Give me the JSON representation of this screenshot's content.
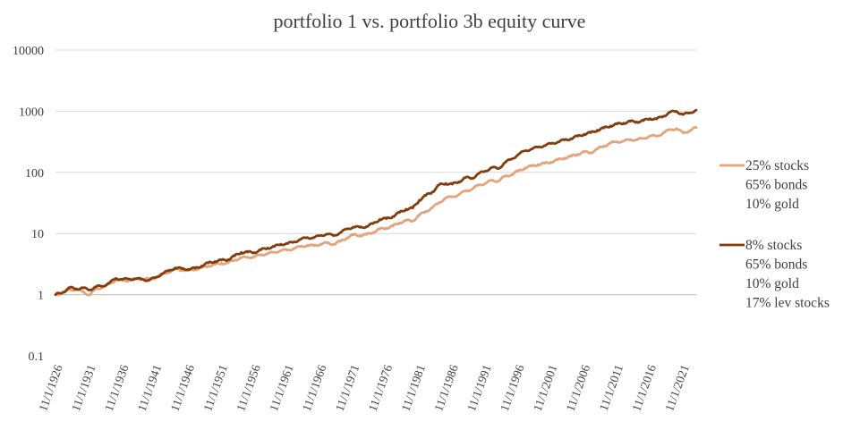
{
  "chart_data": {
    "type": "line",
    "title": "portfolio 1 vs. portfolio 3b equity curve",
    "xlabel": "",
    "ylabel": "",
    "y_scale": "log",
    "ylim": [
      0.1,
      10000
    ],
    "yticks": [
      "0.1",
      "1",
      "10",
      "100",
      "1000",
      "10000"
    ],
    "x_tick_labels": [
      "11/1/1926",
      "11/1/1931",
      "11/1/1936",
      "11/1/1941",
      "11/1/1946",
      "11/1/1951",
      "11/1/1956",
      "11/1/1961",
      "11/1/1966",
      "11/1/1971",
      "11/1/1976",
      "11/1/1981",
      "11/1/1986",
      "11/1/1991",
      "11/1/1996",
      "11/1/2001",
      "11/1/2006",
      "11/1/2011",
      "11/1/2016",
      "11/1/2021"
    ],
    "x_range": [
      1926.83,
      2024.0
    ],
    "grid": "horizontal",
    "legend": "right",
    "series": [
      {
        "legend_lines": [
          "25% stocks",
          "65% bonds",
          "10% gold"
        ],
        "color": "#e3a47c",
        "points": [
          [
            1926.83,
            1.0
          ],
          [
            1928,
            1.08
          ],
          [
            1929,
            1.22
          ],
          [
            1930,
            1.2
          ],
          [
            1931,
            1.12
          ],
          [
            1932,
            0.98
          ],
          [
            1933,
            1.25
          ],
          [
            1934,
            1.32
          ],
          [
            1935,
            1.5
          ],
          [
            1936,
            1.75
          ],
          [
            1937,
            1.7
          ],
          [
            1938,
            1.72
          ],
          [
            1939,
            1.8
          ],
          [
            1940,
            1.82
          ],
          [
            1941,
            1.78
          ],
          [
            1942,
            1.9
          ],
          [
            1943,
            2.15
          ],
          [
            1944,
            2.35
          ],
          [
            1945,
            2.6
          ],
          [
            1946,
            2.55
          ],
          [
            1947,
            2.5
          ],
          [
            1948,
            2.6
          ],
          [
            1949,
            2.75
          ],
          [
            1950,
            2.95
          ],
          [
            1951,
            3.1
          ],
          [
            1952,
            3.25
          ],
          [
            1953,
            3.3
          ],
          [
            1954,
            3.7
          ],
          [
            1955,
            4.0
          ],
          [
            1956,
            4.1
          ],
          [
            1957,
            4.15
          ],
          [
            1958,
            4.5
          ],
          [
            1959,
            4.7
          ],
          [
            1960,
            4.9
          ],
          [
            1961,
            5.3
          ],
          [
            1962,
            5.35
          ],
          [
            1963,
            5.7
          ],
          [
            1964,
            6.1
          ],
          [
            1965,
            6.4
          ],
          [
            1966,
            6.3
          ],
          [
            1967,
            6.7
          ],
          [
            1968,
            7.0
          ],
          [
            1969,
            6.7
          ],
          [
            1970,
            7.4
          ],
          [
            1971,
            8.5
          ],
          [
            1972,
            9.5
          ],
          [
            1973,
            9.3
          ],
          [
            1974,
            9.6
          ],
          [
            1975,
            10.5
          ],
          [
            1976,
            11.8
          ],
          [
            1977,
            12.3
          ],
          [
            1978,
            13.2
          ],
          [
            1979,
            15.0
          ],
          [
            1980,
            16.3
          ],
          [
            1981,
            16.0
          ],
          [
            1982,
            20.0
          ],
          [
            1983,
            23.0
          ],
          [
            1984,
            26.5
          ],
          [
            1985,
            32.0
          ],
          [
            1986,
            38.0
          ],
          [
            1987,
            40.0
          ],
          [
            1988,
            43.0
          ],
          [
            1989,
            50.0
          ],
          [
            1990,
            53.0
          ],
          [
            1991,
            62.0
          ],
          [
            1992,
            66.0
          ],
          [
            1993,
            74.0
          ],
          [
            1994,
            72.0
          ],
          [
            1995,
            86.0
          ],
          [
            1996,
            92.0
          ],
          [
            1997,
            105.0
          ],
          [
            1998,
            118.0
          ],
          [
            1999,
            126.0
          ],
          [
            2000,
            134.0
          ],
          [
            2001,
            140.0
          ],
          [
            2002,
            148.0
          ],
          [
            2003,
            160.0
          ],
          [
            2004,
            172.0
          ],
          [
            2005,
            182.0
          ],
          [
            2006,
            198.0
          ],
          [
            2007,
            215.0
          ],
          [
            2008,
            210.0
          ],
          [
            2009,
            240.0
          ],
          [
            2010,
            270.0
          ],
          [
            2011,
            300.0
          ],
          [
            2012,
            318.0
          ],
          [
            2013,
            322.0
          ],
          [
            2014,
            345.0
          ],
          [
            2015,
            340.0
          ],
          [
            2016,
            360.0
          ],
          [
            2017,
            395.0
          ],
          [
            2018,
            390.0
          ],
          [
            2019,
            440.0
          ],
          [
            2020,
            500.0
          ],
          [
            2021,
            520.0
          ],
          [
            2022,
            440.0
          ],
          [
            2023,
            480.0
          ],
          [
            2024,
            540.0
          ]
        ]
      },
      {
        "legend_lines": [
          "8% stocks",
          "65% bonds",
          "10% gold",
          "17% lev stocks"
        ],
        "color": "#843c0c",
        "points": [
          [
            1926.83,
            1.0
          ],
          [
            1928,
            1.1
          ],
          [
            1929,
            1.3
          ],
          [
            1930,
            1.25
          ],
          [
            1931,
            1.28
          ],
          [
            1932,
            1.2
          ],
          [
            1933,
            1.35
          ],
          [
            1934,
            1.38
          ],
          [
            1935,
            1.55
          ],
          [
            1936,
            1.85
          ],
          [
            1937,
            1.78
          ],
          [
            1938,
            1.8
          ],
          [
            1939,
            1.82
          ],
          [
            1940,
            1.78
          ],
          [
            1941,
            1.72
          ],
          [
            1942,
            1.9
          ],
          [
            1943,
            2.2
          ],
          [
            1944,
            2.45
          ],
          [
            1945,
            2.75
          ],
          [
            1946,
            2.65
          ],
          [
            1947,
            2.6
          ],
          [
            1948,
            2.7
          ],
          [
            1949,
            2.95
          ],
          [
            1950,
            3.3
          ],
          [
            1951,
            3.5
          ],
          [
            1952,
            3.65
          ],
          [
            1953,
            3.75
          ],
          [
            1954,
            4.3
          ],
          [
            1955,
            4.9
          ],
          [
            1956,
            4.95
          ],
          [
            1957,
            4.9
          ],
          [
            1958,
            5.4
          ],
          [
            1959,
            5.8
          ],
          [
            1960,
            6.1
          ],
          [
            1961,
            6.7
          ],
          [
            1962,
            6.8
          ],
          [
            1963,
            7.3
          ],
          [
            1964,
            8.0
          ],
          [
            1965,
            8.6
          ],
          [
            1966,
            8.5
          ],
          [
            1967,
            9.3
          ],
          [
            1968,
            9.8
          ],
          [
            1969,
            9.2
          ],
          [
            1970,
            10.3
          ],
          [
            1971,
            11.8
          ],
          [
            1972,
            12.8
          ],
          [
            1973,
            12.6
          ],
          [
            1974,
            13.0
          ],
          [
            1975,
            14.5
          ],
          [
            1976,
            17.0
          ],
          [
            1977,
            17.5
          ],
          [
            1978,
            19.0
          ],
          [
            1979,
            22.0
          ],
          [
            1980,
            25.0
          ],
          [
            1981,
            26.0
          ],
          [
            1982,
            35.0
          ],
          [
            1983,
            42.0
          ],
          [
            1984,
            48.0
          ],
          [
            1985,
            62.0
          ],
          [
            1986,
            66.0
          ],
          [
            1987,
            64.0
          ],
          [
            1988,
            70.0
          ],
          [
            1989,
            82.0
          ],
          [
            1990,
            80.0
          ],
          [
            1991,
            95.0
          ],
          [
            1992,
            105.0
          ],
          [
            1993,
            120.0
          ],
          [
            1994,
            115.0
          ],
          [
            1995,
            145.0
          ],
          [
            1996,
            165.0
          ],
          [
            1997,
            195.0
          ],
          [
            1998,
            225.0
          ],
          [
            1999,
            240.0
          ],
          [
            2000,
            258.0
          ],
          [
            2001,
            275.0
          ],
          [
            2002,
            295.0
          ],
          [
            2003,
            315.0
          ],
          [
            2004,
            338.0
          ],
          [
            2005,
            355.0
          ],
          [
            2006,
            390.0
          ],
          [
            2007,
            420.0
          ],
          [
            2008,
            445.0
          ],
          [
            2009,
            490.0
          ],
          [
            2010,
            530.0
          ],
          [
            2011,
            575.0
          ],
          [
            2012,
            615.0
          ],
          [
            2013,
            640.0
          ],
          [
            2014,
            680.0
          ],
          [
            2015,
            670.0
          ],
          [
            2016,
            700.0
          ],
          [
            2017,
            760.0
          ],
          [
            2018,
            745.0
          ],
          [
            2019,
            830.0
          ],
          [
            2020,
            960.0
          ],
          [
            2021,
            1000.0
          ],
          [
            2022,
            880.0
          ],
          [
            2023,
            940.0
          ],
          [
            2024,
            1040.0
          ]
        ]
      }
    ]
  }
}
